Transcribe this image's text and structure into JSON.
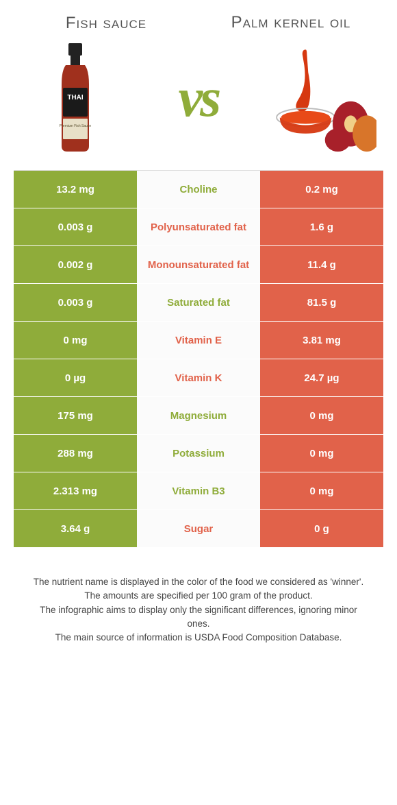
{
  "left": {
    "title": "Fish sauce",
    "color": "#8fac3a"
  },
  "right": {
    "title": "Palm kernel oil",
    "color": "#e1624a"
  },
  "vs_label": "vs",
  "colors": {
    "green": "#8fac3a",
    "orange": "#e1624a",
    "mid_bg": "#fbfbfb",
    "border": "#ffffff"
  },
  "rows": [
    {
      "left": "13.2 mg",
      "label": "Choline",
      "right": "0.2 mg",
      "winner": "left"
    },
    {
      "left": "0.003 g",
      "label": "Polyunsaturated fat",
      "right": "1.6 g",
      "winner": "right"
    },
    {
      "left": "0.002 g",
      "label": "Monounsaturated fat",
      "right": "11.4 g",
      "winner": "right"
    },
    {
      "left": "0.003 g",
      "label": "Saturated fat",
      "right": "81.5 g",
      "winner": "left"
    },
    {
      "left": "0 mg",
      "label": "Vitamin E",
      "right": "3.81 mg",
      "winner": "right"
    },
    {
      "left": "0 µg",
      "label": "Vitamin K",
      "right": "24.7 µg",
      "winner": "right"
    },
    {
      "left": "175 mg",
      "label": "Magnesium",
      "right": "0 mg",
      "winner": "left"
    },
    {
      "left": "288 mg",
      "label": "Potassium",
      "right": "0 mg",
      "winner": "left"
    },
    {
      "left": "2.313 mg",
      "label": "Vitamin B3",
      "right": "0 mg",
      "winner": "left"
    },
    {
      "left": "3.64 g",
      "label": "Sugar",
      "right": "0 g",
      "winner": "right"
    }
  ],
  "footer": [
    "The nutrient name is displayed in the color of the food we considered as 'winner'.",
    "The amounts are specified per 100 gram of the product.",
    "The infographic aims to display only the significant differences, ignoring minor ones.",
    "The main source of information is USDA Food Composition Database."
  ]
}
